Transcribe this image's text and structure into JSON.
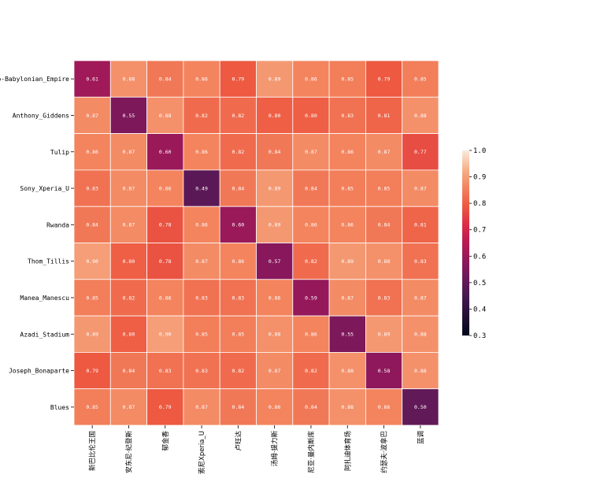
{
  "chart_data": {
    "type": "heatmap",
    "rows": [
      "Neo-Babylonian_Empire",
      "Anthony_Giddens",
      "Tulip",
      "Sony_Xperia_U",
      "Rwanda",
      "Thom_Tillis",
      "Manea_Manescu",
      "Azadi_Stadium",
      "Joseph_Bonaparte",
      "Blues"
    ],
    "row_labels_display": [
      "o-Babylonian_Empire",
      "Anthony_Giddens",
      "Tulip",
      "Sony_Xperia_U",
      "Rwanda",
      "Thom_Tillis",
      "Manea_Manescu",
      "Azadi_Stadium",
      "Joseph_Bonaparte",
      "Blues"
    ],
    "columns": [
      "新巴比伦王国",
      "安东尼·纪登斯",
      "郁金香",
      "索尼Xperia_U",
      "卢旺达",
      "汤姆·提力斯",
      "尼亚·曼内斯库",
      "阿扎迪体育场",
      "约瑟夫·波拿巴",
      "蓝调"
    ],
    "values": [
      [
        0.61,
        0.88,
        0.84,
        0.86,
        0.79,
        0.89,
        0.86,
        0.85,
        0.79,
        0.85
      ],
      [
        0.87,
        0.55,
        0.88,
        0.82,
        0.82,
        0.8,
        0.8,
        0.83,
        0.81,
        0.88
      ],
      [
        0.86,
        0.87,
        0.6,
        0.86,
        0.82,
        0.84,
        0.87,
        0.86,
        0.87,
        0.77
      ],
      [
        0.83,
        0.87,
        0.86,
        0.49,
        0.84,
        0.89,
        0.84,
        0.85,
        0.85,
        0.87
      ],
      [
        0.84,
        0.87,
        0.78,
        0.86,
        0.6,
        0.89,
        0.86,
        0.86,
        0.84,
        0.81
      ],
      [
        0.9,
        0.8,
        0.78,
        0.87,
        0.86,
        0.57,
        0.82,
        0.89,
        0.88,
        0.83
      ],
      [
        0.85,
        0.82,
        0.86,
        0.83,
        0.83,
        0.86,
        0.59,
        0.87,
        0.83,
        0.87
      ],
      [
        0.89,
        0.8,
        0.9,
        0.85,
        0.85,
        0.88,
        0.86,
        0.55,
        0.89,
        0.88
      ],
      [
        0.79,
        0.84,
        0.83,
        0.83,
        0.82,
        0.87,
        0.82,
        0.88,
        0.58,
        0.88
      ],
      [
        0.85,
        0.87,
        0.79,
        0.87,
        0.84,
        0.86,
        0.84,
        0.88,
        0.86,
        0.5
      ]
    ],
    "value_labels": [
      [
        "0.61",
        "0.88",
        "0.84",
        "0.86",
        "0.79",
        "0.89",
        "0.86",
        "0.85",
        "0.79",
        "0.85"
      ],
      [
        "0.87",
        "0.55",
        "0.88",
        "0.82",
        "0.82",
        "0.80",
        "0.80",
        "0.83",
        "0.81",
        "0.88"
      ],
      [
        "0.86",
        "0.87",
        "0.60",
        "0.86",
        "0.82",
        "0.84",
        "0.87",
        "0.86",
        "0.87",
        "0.77"
      ],
      [
        "0.83",
        "0.87",
        "0.86",
        "0.49",
        "0.84",
        "0.89",
        "0.84",
        "0.85",
        "0.85",
        "0.87"
      ],
      [
        "0.84",
        "0.87",
        "0.78",
        "0.86",
        "0.60",
        "0.89",
        "0.86",
        "0.86",
        "0.84",
        "0.81"
      ],
      [
        "0.90",
        "0.80",
        "0.78",
        "0.87",
        "0.86",
        "0.57",
        "0.82",
        "0.89",
        "0.88",
        "0.83"
      ],
      [
        "0.85",
        "0.82",
        "0.86",
        "0.83",
        "0.83",
        "0.86",
        "0.59",
        "0.87",
        "0.83",
        "0.87"
      ],
      [
        "0.89",
        "0.80",
        "0.90",
        "0.85",
        "0.85",
        "0.88",
        "0.86",
        "0.55",
        "0.89",
        "0.88"
      ],
      [
        "0.79",
        "0.84",
        "0.83",
        "0.83",
        "0.82",
        "0.87",
        "0.82",
        "0.88",
        "0.58",
        "0.88"
      ],
      [
        "0.85",
        "0.87",
        "0.79",
        "0.87",
        "0.84",
        "0.86",
        "0.84",
        "0.88",
        "0.86",
        "0.50"
      ]
    ],
    "colorbar": {
      "min": 0.3,
      "max": 1.0,
      "ticks": [
        0.3,
        0.4,
        0.5,
        0.6,
        0.7,
        0.8,
        0.9,
        1.0
      ],
      "tick_labels": [
        "0.3",
        "0.4",
        "0.5",
        "0.6",
        "0.7",
        "0.8",
        "0.9",
        "1.0"
      ],
      "colormap": "rocket"
    },
    "title": "",
    "xlabel": "",
    "ylabel": ""
  }
}
